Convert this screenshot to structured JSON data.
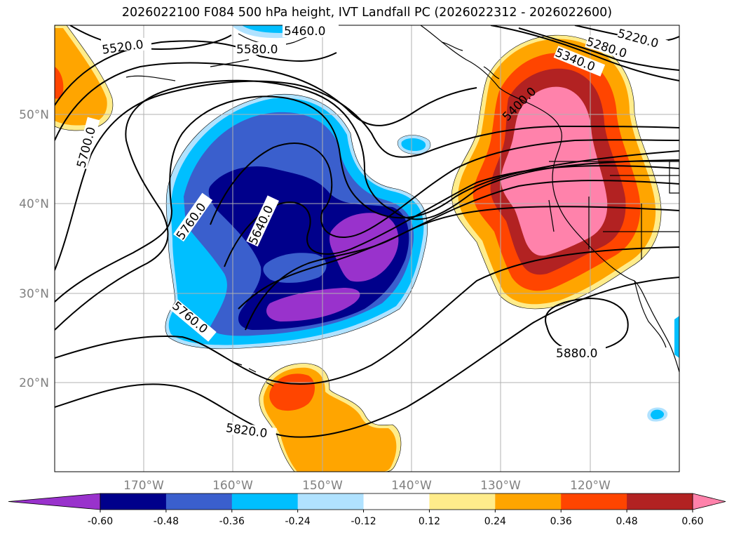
{
  "title": "2026022100 F084 500 hPa height, IVT Landfall PC (2026022312 - 2026022600)",
  "lat_labels": [
    "50°N",
    "40°N",
    "30°N",
    "20°N"
  ],
  "lon_labels": [
    "170°W",
    "160°W",
    "150°W",
    "140°W",
    "130°W",
    "120°W"
  ],
  "contour_labels": [
    "5460.0",
    "5580.0",
    "5520.0",
    "5220.0",
    "5280.0",
    "5340.0",
    "5400.0",
    "5700.0",
    "5760.0",
    "5640.0",
    "5760.0",
    "5880.0",
    "5820.0"
  ],
  "colorbar": {
    "ticks": [
      "-0.60",
      "-0.48",
      "-0.36",
      "-0.24",
      "-0.12",
      "0.12",
      "0.24",
      "0.36",
      "0.48",
      "0.60"
    ],
    "colors": [
      "#9932CC",
      "#00008B",
      "#3A5FCD",
      "#00BFFF",
      "#B0E2FF",
      "#FFFFFF",
      "#FFEC8B",
      "#FFA500",
      "#FF4500",
      "#B22222",
      "#FF82AB"
    ]
  }
}
